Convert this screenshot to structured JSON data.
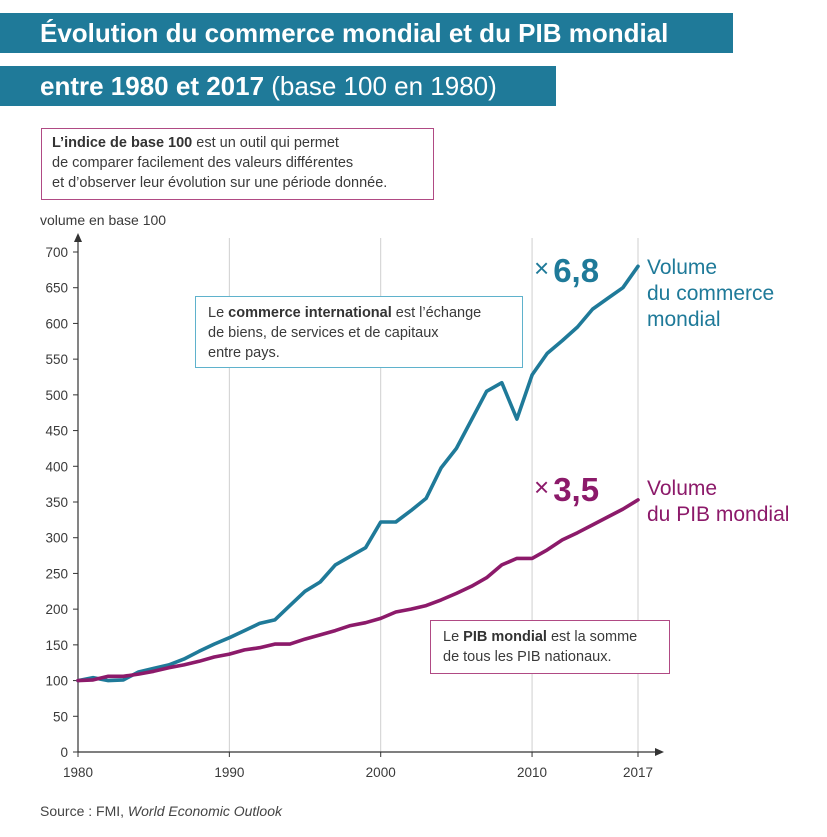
{
  "title": {
    "line1": "Évolution du commerce mondial et du PIB mondial",
    "line2_bold": "entre 1980 et 2017",
    "line2_light": " (base 100 en 1980)"
  },
  "info_index": {
    "bold": "L’indice de base 100",
    "text1": " est un outil qui permet",
    "text2": "de comparer facilement des valeurs différentes",
    "text3": "et d’observer leur évolution sur une période donnée."
  },
  "info_trade": {
    "pre": "Le ",
    "bold": "commerce international",
    "post1": " est l’échange",
    "line2": "de biens, de services et de capitaux",
    "line3": "entre pays."
  },
  "info_gdp": {
    "pre": "Le ",
    "bold": "PIB mondial",
    "post1": " est la somme",
    "line2": "de tous les PIB nationaux."
  },
  "multipliers": {
    "trade": "6,8",
    "gdp": "3,5",
    "symbol": "×"
  },
  "series_labels": {
    "trade_line1": "Volume",
    "trade_line2": "du commerce",
    "trade_line3": "mondial",
    "gdp_line1": "Volume",
    "gdp_line2": "du PIB mondial"
  },
  "source": {
    "prefix": "Source : FMI, ",
    "italic": "World Economic Outlook"
  },
  "chart_data": {
    "type": "line",
    "ylabel": "volume en base 100",
    "ylim": [
      0,
      700
    ],
    "yticks": [
      0,
      50,
      100,
      150,
      200,
      250,
      300,
      350,
      400,
      450,
      500,
      550,
      600,
      650,
      700
    ],
    "xlim": [
      1980,
      2017
    ],
    "xticks": [
      1980,
      1990,
      2000,
      2010,
      2017
    ],
    "grid": "vertical",
    "x": [
      1980,
      1981,
      1982,
      1983,
      1984,
      1985,
      1986,
      1987,
      1988,
      1989,
      1990,
      1991,
      1992,
      1993,
      1994,
      1995,
      1996,
      1997,
      1998,
      1999,
      2000,
      2001,
      2002,
      2003,
      2004,
      2005,
      2006,
      2007,
      2008,
      2009,
      2010,
      2011,
      2012,
      2013,
      2014,
      2015,
      2016,
      2017
    ],
    "series": [
      {
        "key": "trade",
        "color": "#1f7a99",
        "values": [
          100,
          104,
          100,
          101,
          112,
          117,
          122,
          130,
          141,
          151,
          160,
          170,
          180,
          185,
          205,
          225,
          238,
          262,
          274,
          286,
          322,
          322,
          338,
          355,
          398,
          425,
          465,
          505,
          517,
          466,
          528,
          558,
          576,
          595,
          620,
          635,
          650,
          680
        ]
      },
      {
        "key": "gdp",
        "color": "#8c1a6a",
        "values": [
          100,
          101,
          106,
          106,
          109,
          113,
          118,
          122,
          127,
          133,
          137,
          143,
          146,
          151,
          151,
          158,
          164,
          170,
          177,
          181,
          187,
          196,
          200,
          205,
          213,
          222,
          232,
          244,
          262,
          271,
          271,
          283,
          297,
          307,
          318,
          329,
          340,
          353
        ]
      }
    ]
  }
}
